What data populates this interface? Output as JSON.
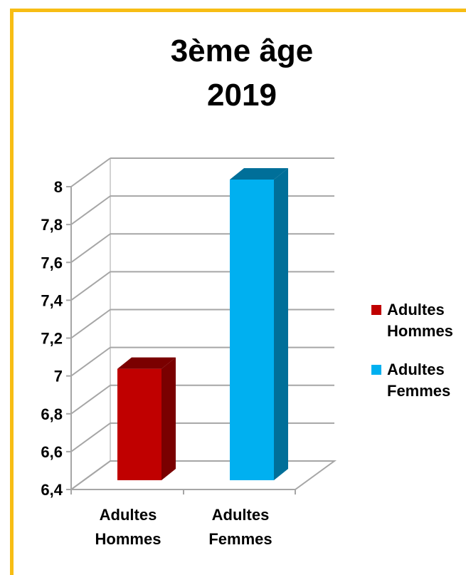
{
  "chart_data": {
    "type": "bar",
    "title": [
      "3ème âge",
      "2019"
    ],
    "categories": [
      [
        "Adultes",
        "Hommes"
      ],
      [
        "Adultes",
        "Femmes"
      ]
    ],
    "series": [
      {
        "values": [
          7.0,
          8.0
        ]
      }
    ],
    "bar_colors": [
      "#c00000",
      "#00b0f0"
    ],
    "bar_side_colors": [
      "#7a0000",
      "#006f99"
    ],
    "ylim": [
      6.4,
      8.0
    ],
    "yticks": [
      "6,4",
      "6,6",
      "6,8",
      "7",
      "7,2",
      "7,4",
      "7,6",
      "7,8",
      "8"
    ],
    "ytick_values": [
      6.4,
      6.6,
      6.8,
      7.0,
      7.2,
      7.4,
      7.6,
      7.8,
      8.0
    ],
    "grid": true,
    "legend": {
      "placement": "right",
      "entries": [
        {
          "lines": [
            "Adultes",
            "Hommes"
          ],
          "color": "#c00000"
        },
        {
          "lines": [
            "Adultes",
            "Femmes"
          ],
          "color": "#00b0f0"
        }
      ]
    }
  },
  "frame_color": "#f7bd14"
}
